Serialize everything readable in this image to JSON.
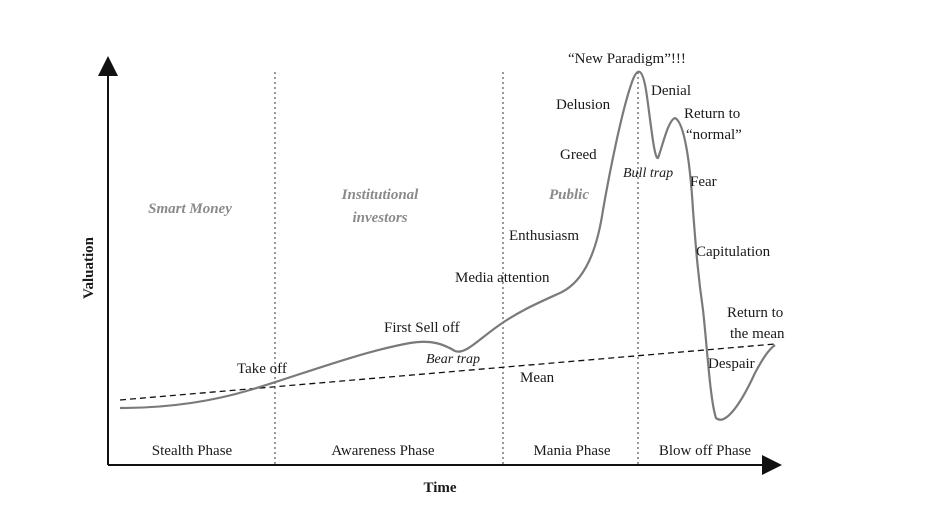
{
  "axes": {
    "x_title": "Time",
    "y_title": "Valuation"
  },
  "groups": {
    "smart_money": "Smart Money",
    "institutional_1": "Institutional",
    "institutional_2": "investors",
    "public": "Public"
  },
  "phases": {
    "stealth": "Stealth Phase",
    "awareness": "Awareness Phase",
    "mania": "Mania Phase",
    "blowoff": "Blow off Phase"
  },
  "labels": {
    "take_off": "Take off",
    "first_sell_off": "First Sell off",
    "bear_trap": "Bear trap",
    "mean": "Mean",
    "media_attention": "Media attention",
    "enthusiasm": "Enthusiasm",
    "greed": "Greed",
    "delusion": "Delusion",
    "new_paradigm": "“New Paradigm”!!!",
    "denial": "Denial",
    "return_normal_1": "Return to",
    "return_normal_2": "“normal”",
    "bull_trap": "Bull trap",
    "fear": "Fear",
    "capitulation": "Capitulation",
    "return_mean_1": "Return to",
    "return_mean_2": "the mean",
    "despair": "Despair"
  },
  "colors": {
    "curve": "#7a7a7a",
    "axis": "#111111",
    "group_text": "#8a8a8a"
  }
}
